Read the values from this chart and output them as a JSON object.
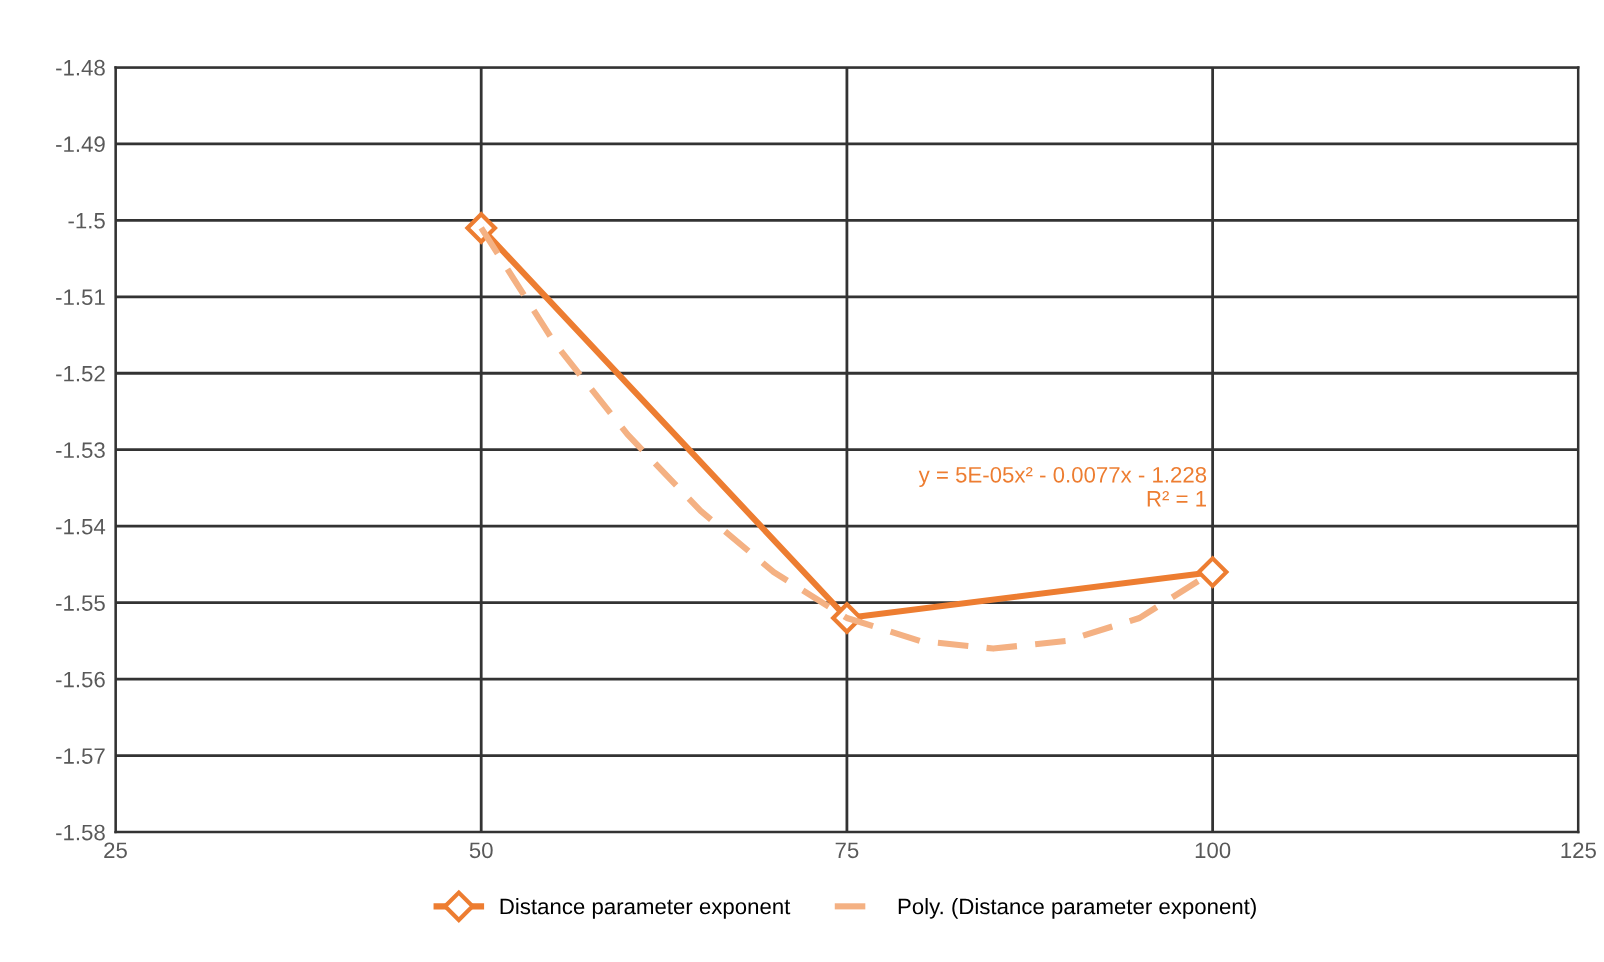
{
  "chart_data": {
    "type": "line",
    "x": [
      50,
      75,
      100
    ],
    "marker": "diamond",
    "line_style": "solid",
    "grid": true,
    "legend": "bottom",
    "xlim": [
      25,
      125
    ],
    "xticks": [
      25,
      50,
      75,
      100,
      125
    ],
    "ylim": [
      -1.58,
      -1.48
    ],
    "yticks": [
      -1.58,
      -1.57,
      -1.56,
      -1.55,
      -1.54,
      -1.53,
      -1.52,
      -1.51,
      {
        "value": -1.5,
        "label": "-1.5"
      },
      -1.49,
      -1.48
    ],
    "series": [
      {
        "name": "Distance parameter exponent",
        "color": "#ed7d31",
        "values": [
          -1.501,
          -1.552,
          -1.546
        ]
      },
      {
        "name": "Poly. (Distance parameter exponent)",
        "color": "#f4b183",
        "type": "line",
        "marker": "none",
        "line_style": "dashed",
        "x": [
          50,
          55,
          60,
          65,
          70,
          75,
          80,
          85,
          90,
          95,
          100
        ],
        "values": [
          -1.501,
          -1.516,
          -1.528,
          -1.538,
          -1.546,
          -1.552,
          -1.555,
          -1.556,
          -1.555,
          -1.552,
          -1.546
        ]
      }
    ],
    "annotations": [
      {
        "text": "y = 5E-05x² - 0.0077x - 1.228\nR² = 1",
        "x": 100,
        "y": -1.546
      }
    ]
  }
}
